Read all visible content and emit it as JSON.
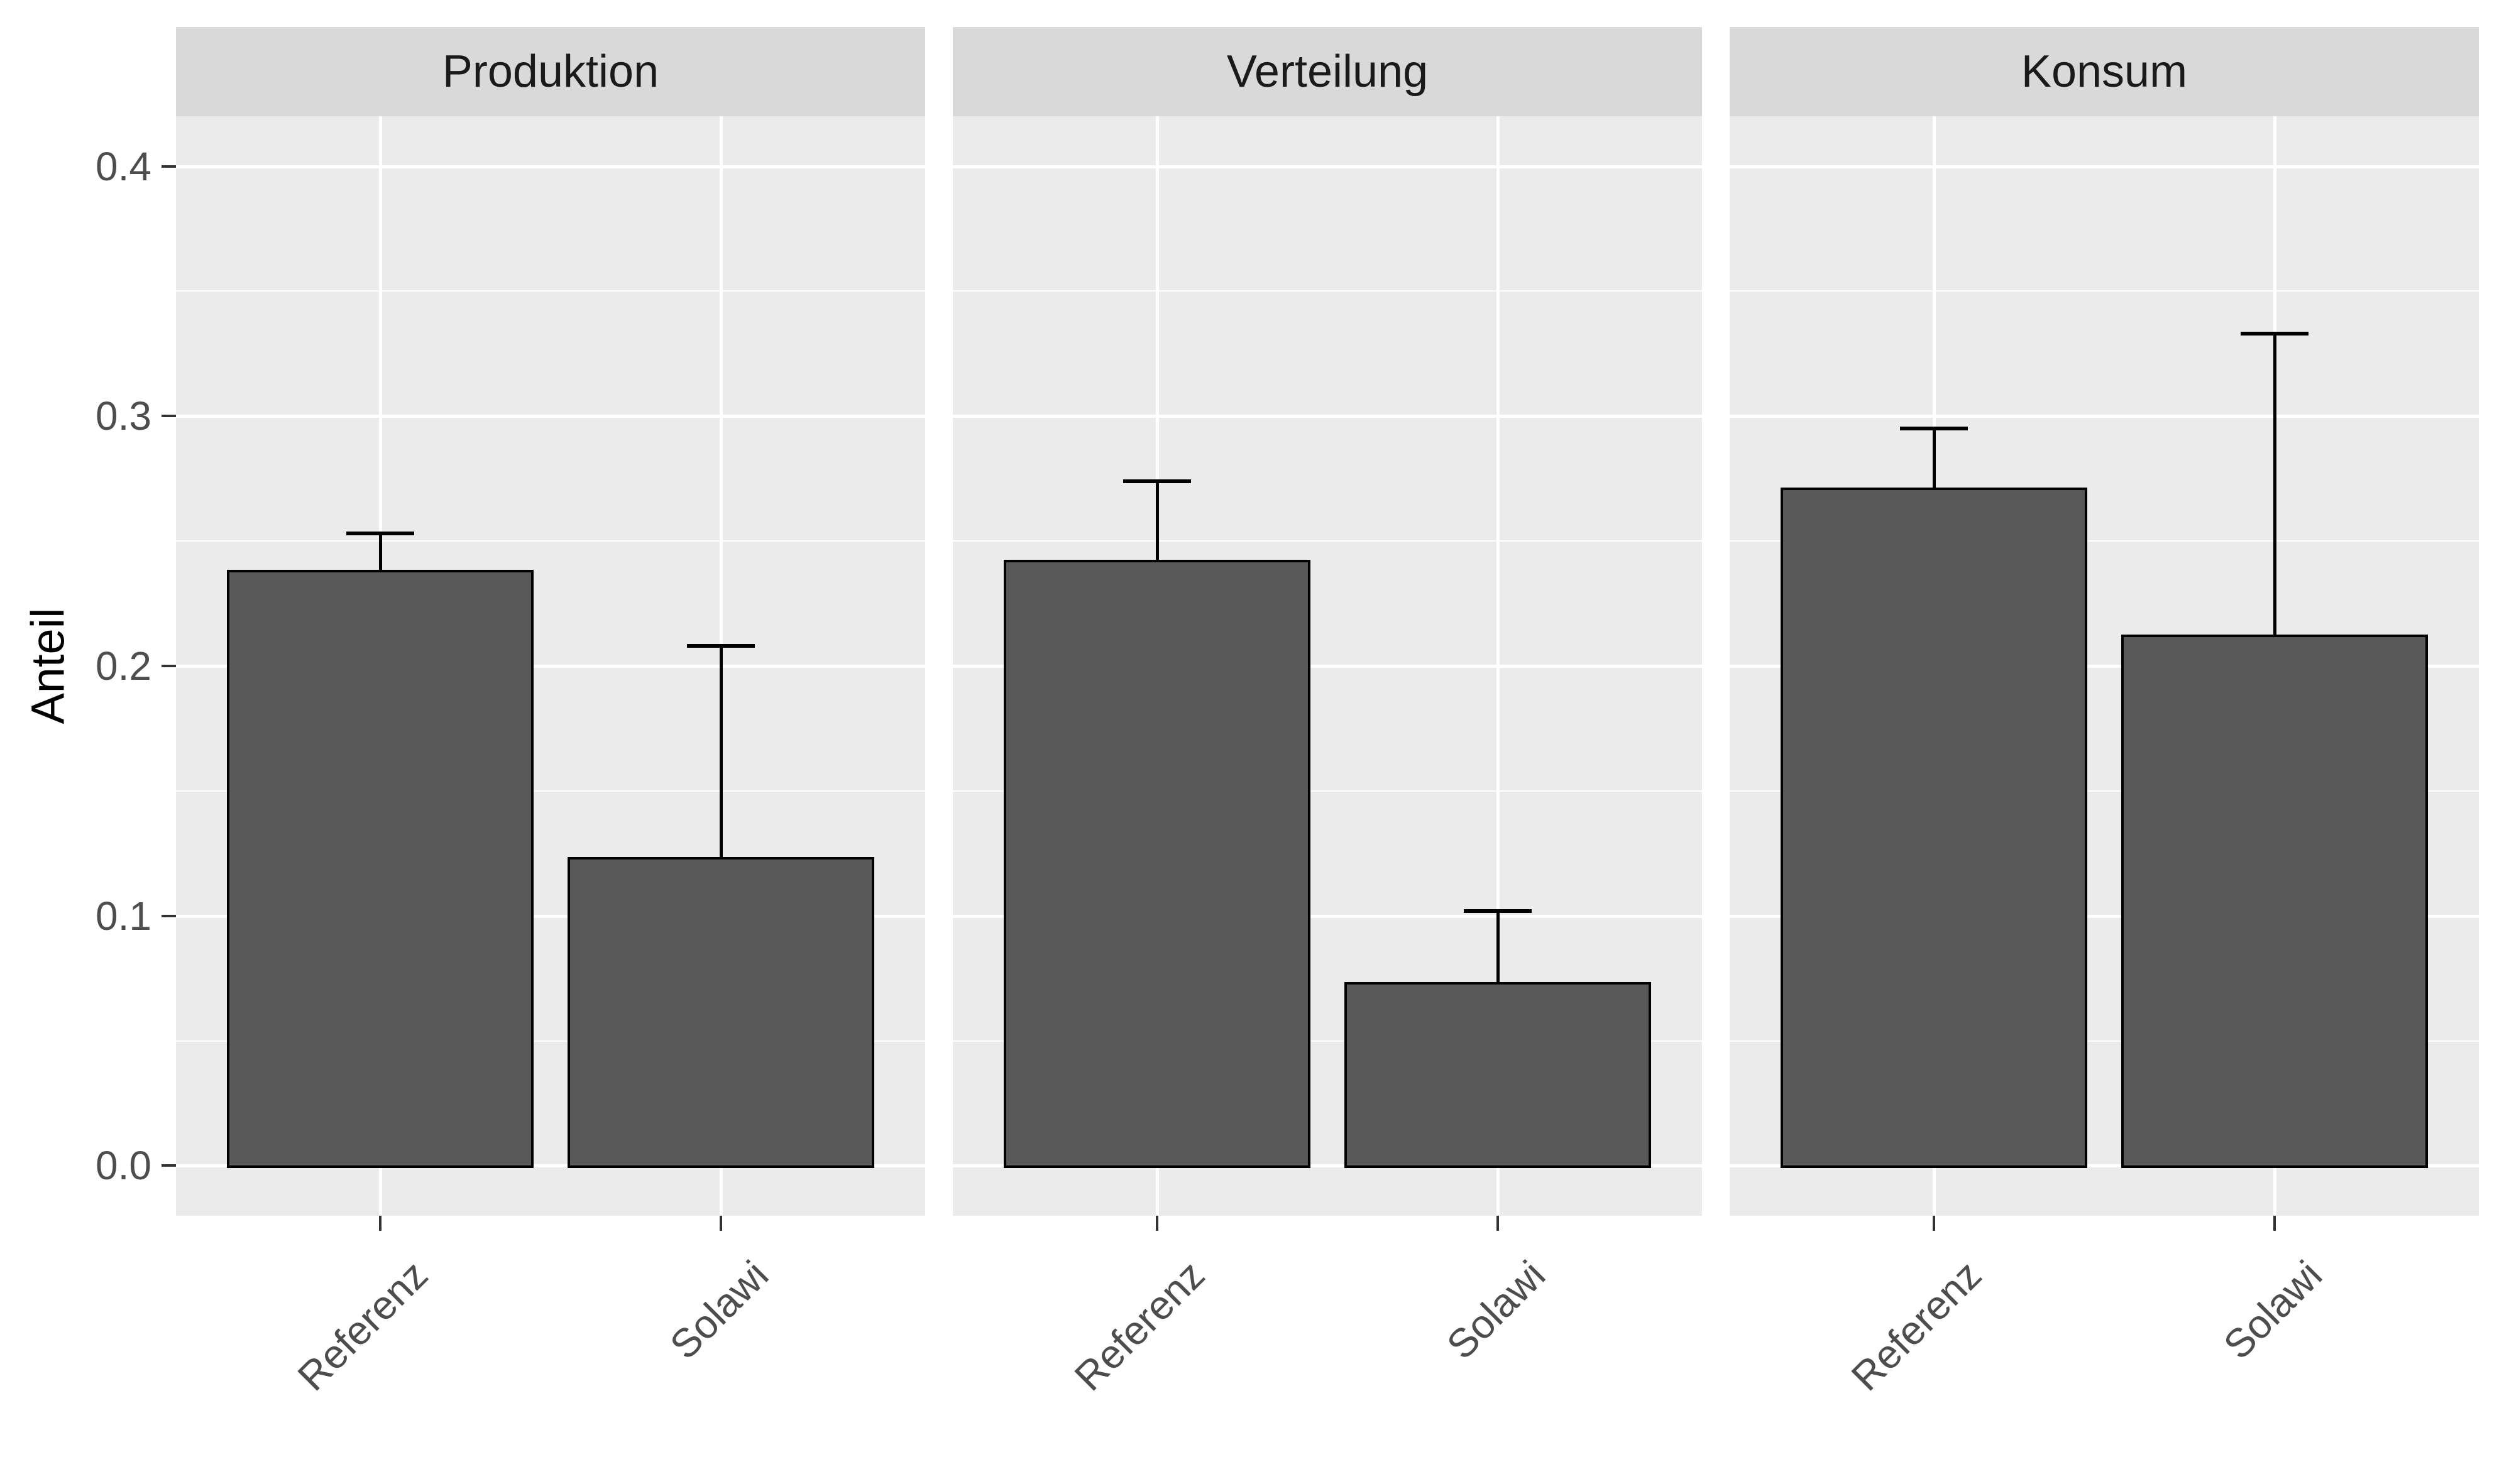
{
  "chart_data": {
    "type": "bar",
    "title": "",
    "ylabel": "Anteil",
    "xlabel": "",
    "categories": [
      "Referenz",
      "Solawi"
    ],
    "facets": [
      {
        "label": "Produktion",
        "bars": [
          {
            "category": "Referenz",
            "value": 0.238,
            "error_top": 0.253
          },
          {
            "category": "Solawi",
            "value": 0.123,
            "error_top": 0.208
          }
        ]
      },
      {
        "label": "Verteilung",
        "bars": [
          {
            "category": "Referenz",
            "value": 0.242,
            "error_top": 0.274
          },
          {
            "category": "Solawi",
            "value": 0.073,
            "error_top": 0.102
          }
        ]
      },
      {
        "label": "Konsum",
        "bars": [
          {
            "category": "Referenz",
            "value": 0.271,
            "error_top": 0.295
          },
          {
            "category": "Solawi",
            "value": 0.212,
            "error_top": 0.333
          }
        ]
      }
    ],
    "y_axis": {
      "ticks": [
        {
          "value": 0.0,
          "label": "0.0"
        },
        {
          "value": 0.1,
          "label": "0.1"
        },
        {
          "value": 0.2,
          "label": "0.2"
        },
        {
          "value": 0.3,
          "label": "0.3"
        },
        {
          "value": 0.4,
          "label": "0.4"
        }
      ],
      "minor_ticks": [
        0.05,
        0.15,
        0.25,
        0.35
      ],
      "range_shown": [
        0,
        0.42
      ]
    },
    "legend_position": "none",
    "grid": "white major and minor horizontal lines, white vertical line at each bar center, ggplot style",
    "error_bars": "upper whisker with flat cap, black",
    "colors": {
      "bar_fill": "#595959",
      "bar_outline": "#000000",
      "panel_background": "#ebebeb",
      "strip_background": "#d9d9d9",
      "strip_text": "#1a1a1a",
      "gridline": "#ffffff",
      "axis_text": "#4d4d4d",
      "tick_mark": "#333333",
      "axis_title": "#000000",
      "page_background": "#ffffff"
    }
  }
}
